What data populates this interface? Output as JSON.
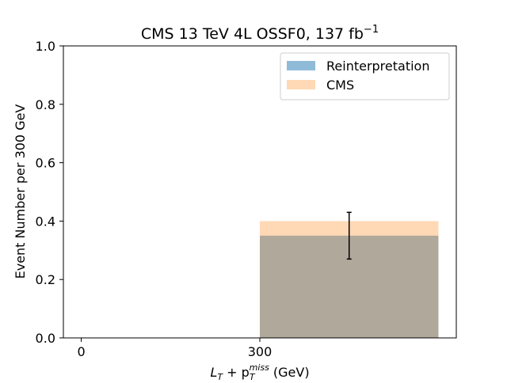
{
  "chart_data": {
    "type": "bar",
    "title": "CMS 13 TeV 4L OSSF0, 137 fb",
    "title_superscript": "−1",
    "xlabel": {
      "main": "L",
      "main_sub": "T",
      "plus": " + p",
      "p_sub": "T",
      "p_sup": "miss",
      "unit": " (GeV)"
    },
    "ylabel": "Event Number per 300 GeV",
    "xlim": [
      -30,
      630
    ],
    "ylim": [
      0,
      1.0
    ],
    "xticks": [
      0,
      300
    ],
    "yticks": [
      0.0,
      0.2,
      0.4,
      0.6,
      0.8,
      1.0
    ],
    "bin_edges": [
      0,
      300,
      600
    ],
    "series": [
      {
        "name": "Reinterpretation",
        "values": [
          0.0,
          0.35
        ],
        "color": "#1f77b4",
        "alpha": 0.5
      },
      {
        "name": "CMS",
        "values": [
          0.0,
          0.4
        ],
        "color": "#ff7f0e",
        "alpha": 0.3
      }
    ],
    "errorbars": [
      {
        "x": 450,
        "y": 0.35,
        "low": 0.27,
        "high": 0.43
      }
    ],
    "legend": {
      "position": "top-right",
      "entries": [
        "Reinterpretation",
        "CMS"
      ]
    },
    "grid": false
  }
}
